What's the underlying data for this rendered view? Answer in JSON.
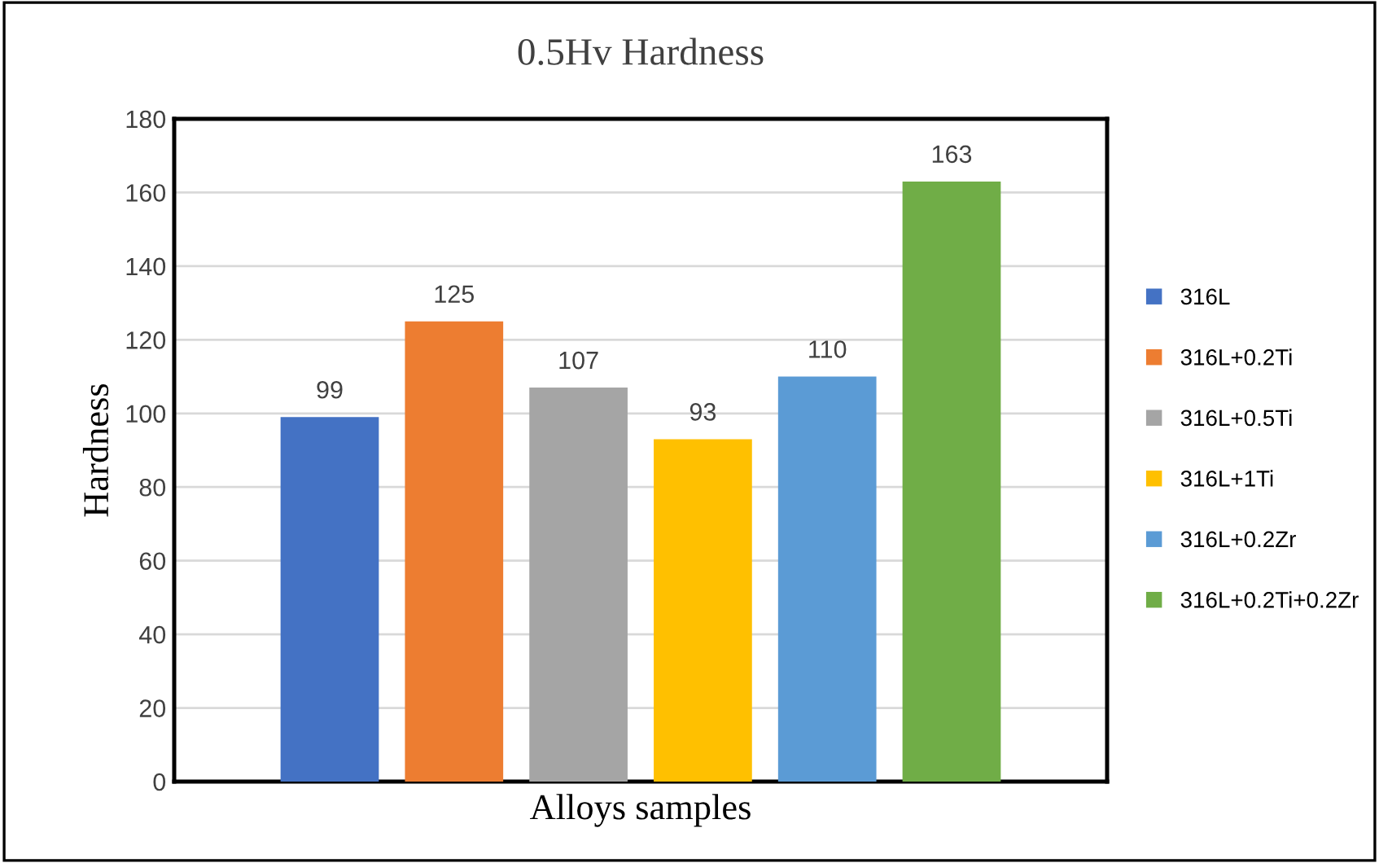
{
  "chart_data": {
    "type": "bar",
    "title": "0.5Hv Hardness",
    "xlabel": "Alloys samples",
    "ylabel": "Hardness",
    "categories": [
      null,
      null,
      null,
      null,
      null,
      null
    ],
    "series": [
      {
        "name": "316L",
        "color": "#4472c4",
        "values": [
          99,
          null,
          null,
          null,
          null,
          null
        ]
      },
      {
        "name": "316L+0.2Ti",
        "color": "#ed7d31",
        "values": [
          null,
          125,
          null,
          null,
          null,
          null
        ]
      },
      {
        "name": "316L+0.5Ti",
        "color": "#a5a5a5",
        "values": [
          null,
          null,
          107,
          null,
          null,
          null
        ]
      },
      {
        "name": "316L+1Ti",
        "color": "#ffc000",
        "values": [
          null,
          null,
          null,
          93,
          null,
          null
        ]
      },
      {
        "name": "316L+0.2Zr",
        "color": "#5b9bd5",
        "values": [
          null,
          null,
          null,
          null,
          110,
          null
        ]
      },
      {
        "name": "316L+0.2Ti+0.2Zr",
        "color": "#70ad47",
        "values": [
          null,
          null,
          null,
          null,
          null,
          163
        ]
      }
    ],
    "ylim": [
      0,
      180
    ],
    "yticks": [
      0,
      20,
      40,
      60,
      80,
      100,
      120,
      140,
      160,
      180
    ],
    "grid": "y",
    "legend": "right",
    "data_labels": true
  }
}
